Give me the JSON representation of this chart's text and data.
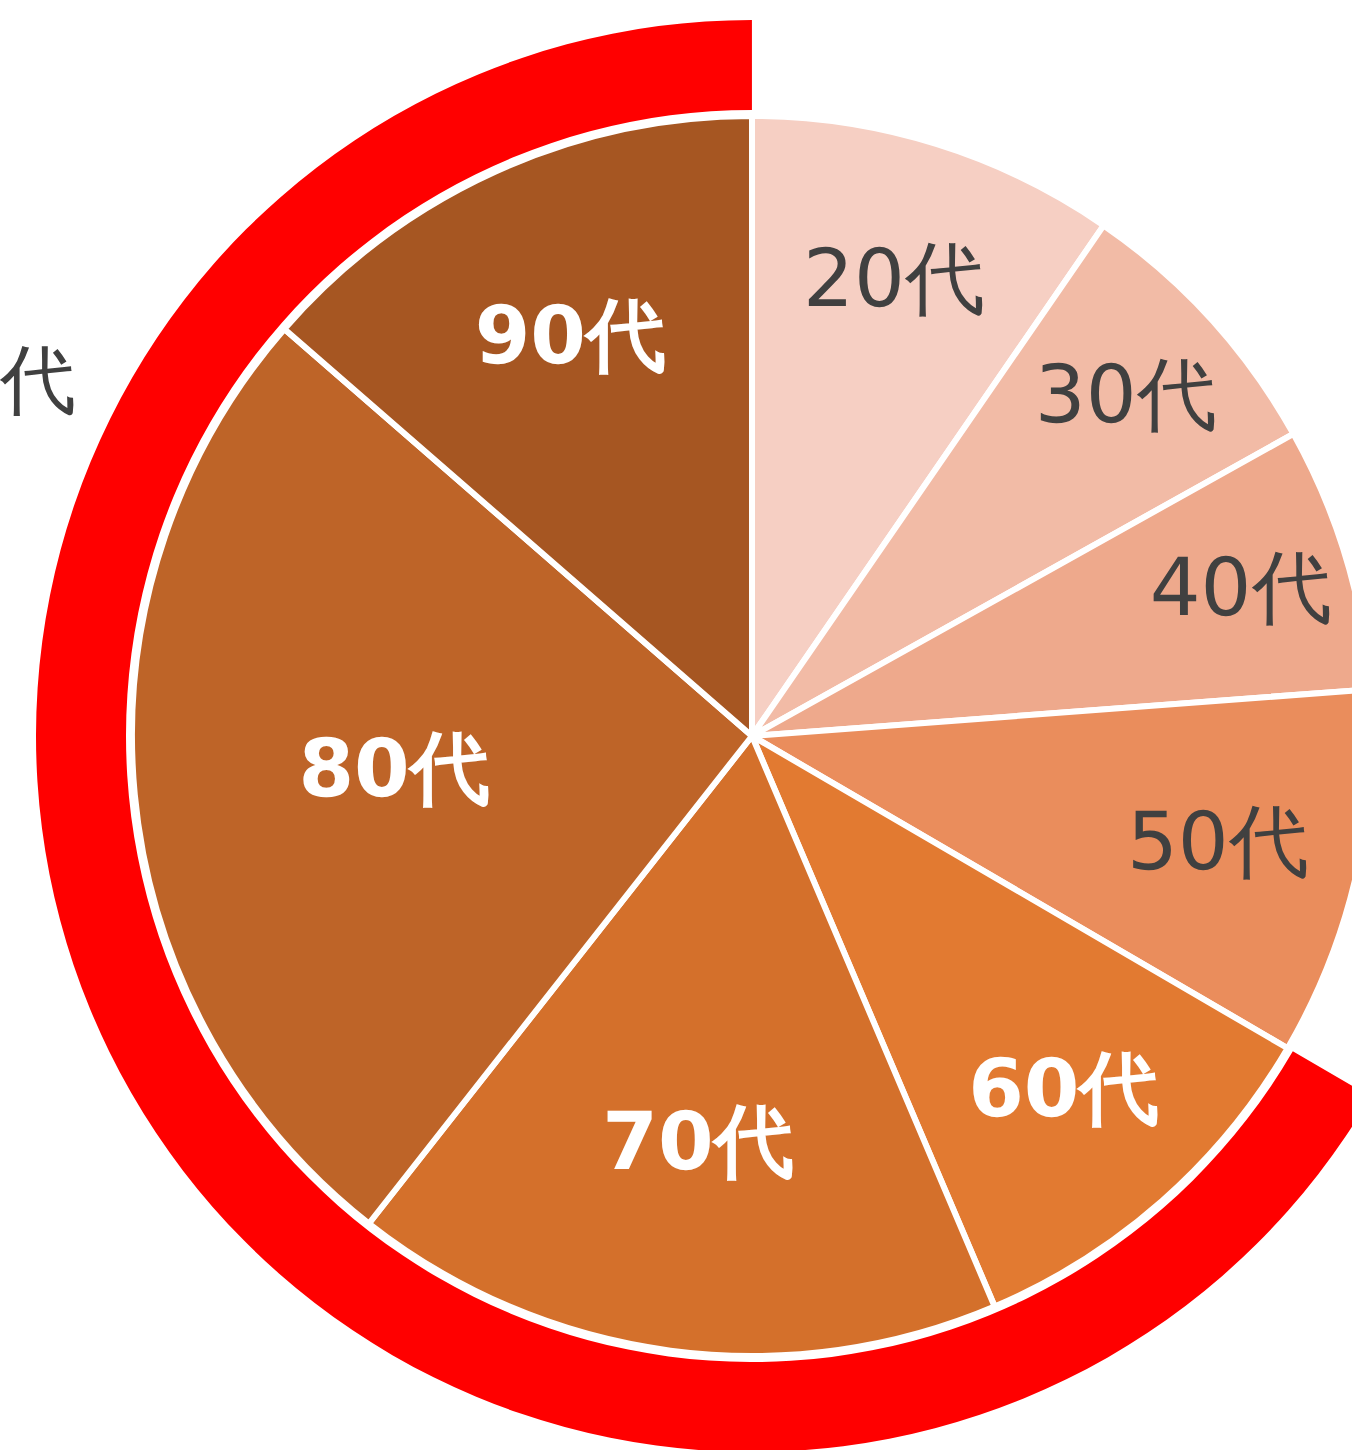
{
  "chart_data": {
    "type": "pie",
    "categories": [
      "20代",
      "30代",
      "40代",
      "50代",
      "60代",
      "70代",
      "80代",
      "90代"
    ],
    "values": [
      9.6,
      7.3,
      6.9,
      9.6,
      10.2,
      17.0,
      25.8,
      13.6
    ],
    "colors": [
      "#f6cfc3",
      "#f2bba6",
      "#eea98c",
      "#ea8d5c",
      "#e27a31",
      "#d4702b",
      "#be6428",
      "#a65622"
    ],
    "annotations": [
      "代"
    ],
    "legend": false
  }
}
